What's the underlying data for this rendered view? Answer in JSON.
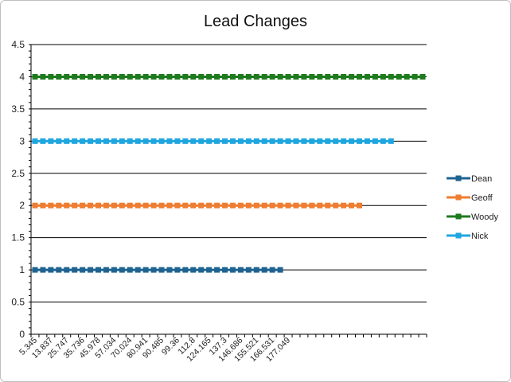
{
  "chart_data": {
    "type": "line",
    "title": "Lead Changes",
    "xlabel": "",
    "ylabel": "",
    "ylim": [
      0,
      4.5
    ],
    "y_ticks": [
      "0",
      "0.5",
      "1",
      "1.5",
      "2",
      "2.5",
      "3",
      "3.5",
      "4",
      "4.5"
    ],
    "x_tick_labels": [
      "5.345",
      "13.837",
      "25.747",
      "35.736",
      "45.978",
      "57.034",
      "70.024",
      "80.941",
      "90.485",
      "99.36",
      "112.8",
      "124.165",
      "137.3",
      "146.686",
      "155.521",
      "166.531",
      "177.049"
    ],
    "x_category_count": 50,
    "grid": true,
    "legend_position": "right",
    "series": [
      {
        "name": "Dean",
        "color": "#1f6391",
        "value": 1,
        "points": 32
      },
      {
        "name": "Geoff",
        "color": "#ed7d31",
        "value": 2,
        "points": 42
      },
      {
        "name": "Woody",
        "color": "#1e7a1e",
        "value": 4,
        "points": 50
      },
      {
        "name": "Nick",
        "color": "#1fa6de",
        "value": 3,
        "points": 46
      }
    ]
  }
}
